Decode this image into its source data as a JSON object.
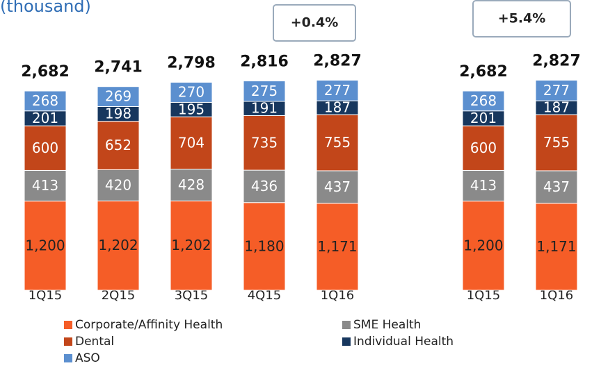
{
  "chart_data": {
    "type": "bar",
    "stacked": true,
    "title": "(thousand)",
    "categories": [
      "1Q15",
      "2Q15",
      "3Q15",
      "4Q15",
      "1Q16",
      null,
      "1Q15",
      "1Q16"
    ],
    "series": [
      {
        "name": "Corporate/Affinity Health",
        "color": "#f55d27",
        "values": [
          1200,
          1202,
          1202,
          1180,
          1171,
          null,
          1200,
          1171
        ],
        "value_labels": [
          "1,200",
          "1,202",
          "1,202",
          "1,180",
          "1,171",
          null,
          "1,200",
          "1,171"
        ]
      },
      {
        "name": "SME Health",
        "color": "#8a8a8a",
        "values": [
          413,
          420,
          428,
          436,
          437,
          null,
          413,
          437
        ]
      },
      {
        "name": "Dental",
        "color": "#c2461a",
        "values": [
          600,
          652,
          704,
          735,
          755,
          null,
          600,
          755
        ]
      },
      {
        "name": "Individual Health",
        "color": "#17375e",
        "values": [
          201,
          198,
          195,
          191,
          187,
          null,
          201,
          187
        ]
      },
      {
        "name": "ASO",
        "color": "#5b8fcf",
        "values": [
          268,
          269,
          270,
          275,
          277,
          null,
          268,
          277
        ]
      }
    ],
    "totals": {
      "values": [
        2682,
        2741,
        2798,
        2816,
        2827,
        null,
        2682,
        2827
      ],
      "value_labels": [
        "2,682",
        "2,741",
        "2,798",
        "2,816",
        "2,827",
        null,
        "2,682",
        "2,827"
      ]
    },
    "annotations": [
      "+0.4%",
      "+5.4%"
    ]
  }
}
